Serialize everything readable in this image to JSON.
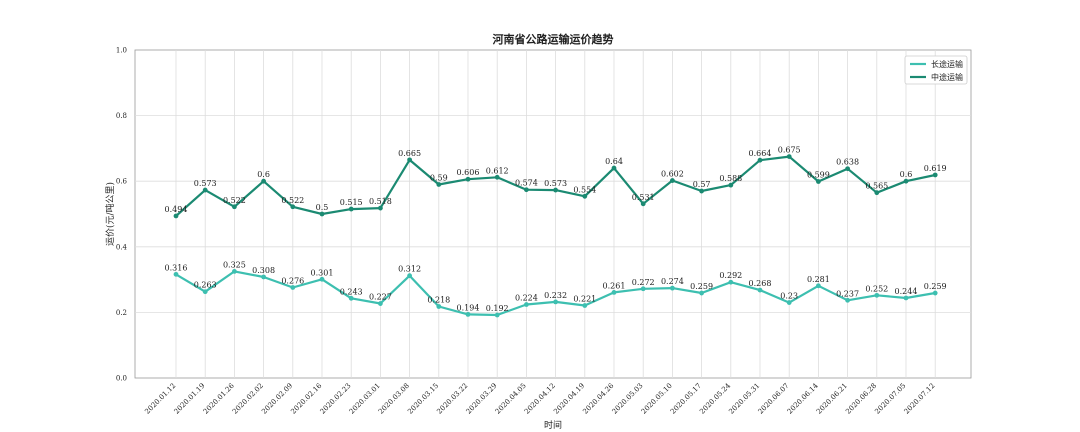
{
  "chart_data": {
    "type": "line",
    "title": "河南省公路运输运价趋势",
    "xlabel": "时间",
    "ylabel": "运价(元/吨公里)",
    "ylim": [
      0,
      1.0
    ],
    "yticks": [
      "0.0",
      "0.2",
      "0.4",
      "0.6",
      "0.8",
      "1.0"
    ],
    "grid": true,
    "legend_position": "top-right",
    "categories": [
      "2020.01.12",
      "2020.01.19",
      "2020.01.26",
      "2020.02.02",
      "2020.02.09",
      "2020.02.16",
      "2020.02.23",
      "2020.03.01",
      "2020.03.08",
      "2020.03.15",
      "2020.03.22",
      "2020.03.29",
      "2020.04.05",
      "2020.04.12",
      "2020.04.19",
      "2020.04.26",
      "2020.05.03",
      "2020.05.10",
      "2020.05.17",
      "2020.05.24",
      "2020.05.31",
      "2020.06.07",
      "2020.06.14",
      "2020.06.21",
      "2020.06.28",
      "2020.07.05",
      "2020.07.12"
    ],
    "series": [
      {
        "name": "长途运输",
        "color": "#3dbfb0",
        "values": [
          0.316,
          0.263,
          0.325,
          0.308,
          0.276,
          0.301,
          0.243,
          0.227,
          0.312,
          0.218,
          0.194,
          0.192,
          0.224,
          0.232,
          0.221,
          0.261,
          0.272,
          0.274,
          0.259,
          0.292,
          0.268,
          0.23,
          0.281,
          0.237,
          0.252,
          0.244,
          0.259
        ]
      },
      {
        "name": "中途运输",
        "color": "#1b8a72",
        "values": [
          0.494,
          0.573,
          0.522,
          0.6,
          0.522,
          0.5,
          0.515,
          0.518,
          0.665,
          0.59,
          0.606,
          0.612,
          0.574,
          0.573,
          0.554,
          0.64,
          0.531,
          0.602,
          0.57,
          0.588,
          0.664,
          0.675,
          0.599,
          0.638,
          0.565,
          0.6,
          0.619
        ]
      }
    ]
  }
}
